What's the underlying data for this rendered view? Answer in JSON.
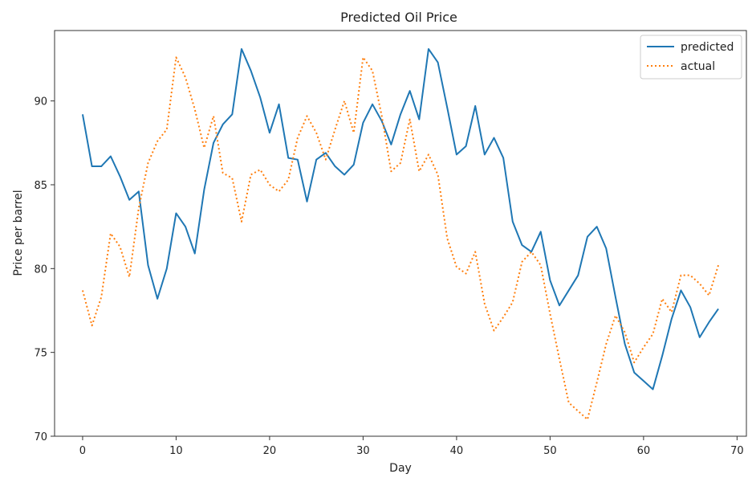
{
  "chart_data": {
    "type": "line",
    "title": "Predicted Oil Price",
    "xlabel": "Day",
    "ylabel": "Price per barrel",
    "xlim": [
      -3,
      71
    ],
    "ylim": [
      70,
      94.2
    ],
    "xticks": [
      0,
      10,
      20,
      30,
      40,
      50,
      60,
      70
    ],
    "yticks": [
      70,
      75,
      80,
      85,
      90
    ],
    "grid": false,
    "legend": "top-right",
    "x": [
      0,
      1,
      2,
      3,
      4,
      5,
      6,
      7,
      8,
      9,
      10,
      11,
      12,
      13,
      14,
      15,
      16,
      17,
      18,
      19,
      20,
      21,
      22,
      23,
      24,
      25,
      26,
      27,
      28,
      29,
      30,
      31,
      32,
      33,
      34,
      35,
      36,
      37,
      38,
      39,
      40,
      41,
      42,
      43,
      44,
      45,
      46,
      47,
      48,
      49,
      50,
      51,
      52,
      53,
      54,
      55,
      56,
      57,
      58,
      59,
      60,
      61,
      62,
      63,
      64,
      65,
      66,
      67,
      68
    ],
    "series": [
      {
        "name": "predicted",
        "color": "#1f77b4",
        "style": "solid",
        "values": [
          89.2,
          86.1,
          86.1,
          86.7,
          85.5,
          84.1,
          84.6,
          80.2,
          78.2,
          80.0,
          83.3,
          82.5,
          80.9,
          84.7,
          87.5,
          88.6,
          89.2,
          93.1,
          91.8,
          90.2,
          88.1,
          89.8,
          86.6,
          86.5,
          84.0,
          86.5,
          86.9,
          86.1,
          85.6,
          86.2,
          88.7,
          89.8,
          88.8,
          87.4,
          89.2,
          90.6,
          88.9,
          93.1,
          92.3,
          89.6,
          86.8,
          87.3,
          89.7,
          86.8,
          87.8,
          86.6,
          82.8,
          81.4,
          81.0,
          82.2,
          79.3,
          77.8,
          78.7,
          79.6,
          81.9,
          82.5,
          81.2,
          78.3,
          75.5,
          73.8,
          73.3,
          72.8,
          74.8,
          77.0,
          78.7,
          77.7,
          75.9,
          76.8,
          77.6
        ]
      },
      {
        "name": "actual",
        "color": "#ff7f0e",
        "style": "dotted",
        "values": [
          78.7,
          76.6,
          78.3,
          82.1,
          81.3,
          79.5,
          83.6,
          86.3,
          87.6,
          88.3,
          92.6,
          91.4,
          89.5,
          87.2,
          89.1,
          85.7,
          85.4,
          82.8,
          85.6,
          85.9,
          85.0,
          84.6,
          85.3,
          87.8,
          89.1,
          88.1,
          86.5,
          88.3,
          90.0,
          88.1,
          92.6,
          91.8,
          89.1,
          85.8,
          86.3,
          88.9,
          85.8,
          86.8,
          85.6,
          81.8,
          80.1,
          79.7,
          81.0,
          77.9,
          76.3,
          77.1,
          78.0,
          80.4,
          81.0,
          80.2,
          77.3,
          74.6,
          72.0,
          71.5,
          71.0,
          73.2,
          75.5,
          77.2,
          76.2,
          74.4,
          75.3,
          76.1,
          78.2,
          77.4,
          79.6,
          79.6,
          79.1,
          78.4,
          80.2
        ]
      }
    ]
  }
}
